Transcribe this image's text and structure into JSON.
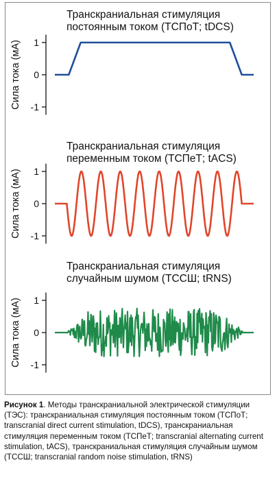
{
  "chart_data": [
    {
      "type": "line",
      "title": "Транскраниальная стимуляция\nпостоянным током (ТСПоТ; tDCS)",
      "ylabel": "Сила тока (мА)",
      "yticks": [
        "1",
        "0",
        "-1"
      ],
      "ylim": [
        -1.2,
        1.2
      ],
      "color": "#1f4e9a",
      "series": [
        {
          "x": [
            0,
            0.07,
            0.13,
            0.88,
            0.94,
            1.0
          ],
          "y": [
            0,
            0,
            1,
            1,
            0,
            0
          ]
        }
      ]
    },
    {
      "type": "line",
      "title": "Транскраниальная стимуляция\nпеременным током (ТСПеТ; tACS)",
      "ylabel": "Сила тока (мА)",
      "yticks": [
        "1",
        "0",
        "-1"
      ],
      "ylim": [
        -1.2,
        1.2
      ],
      "color": "#e0452a",
      "waveform": "sine",
      "cycles": 9,
      "amplitude": 1
    },
    {
      "type": "line",
      "title": "Транскраниальная стимуляция\nслучайным шумом (ТССШ; tRNS)",
      "ylabel": "Сила тока (мА)",
      "yticks": [
        "1",
        "0",
        "-1"
      ],
      "ylim": [
        -1.2,
        1.2
      ],
      "color": "#1f8a4a",
      "waveform": "random-noise",
      "amplitude": 0.75
    }
  ],
  "caption": {
    "label": "Рисунок 1",
    "text": ". Методы транскраниальной электрической стимуляции (ТЭС): транскраниальная стимуляция постоянным током (ТСПоТ; transcranial direct current stimulation, tDCS), транскраниальная стимуляция переменным током (ТСПеТ; transcranial alternating current stimulation, tACS), транскраниальная стимуляция случайным шумом (ТССШ; transcranial random noise stimulation, tRNS)"
  }
}
